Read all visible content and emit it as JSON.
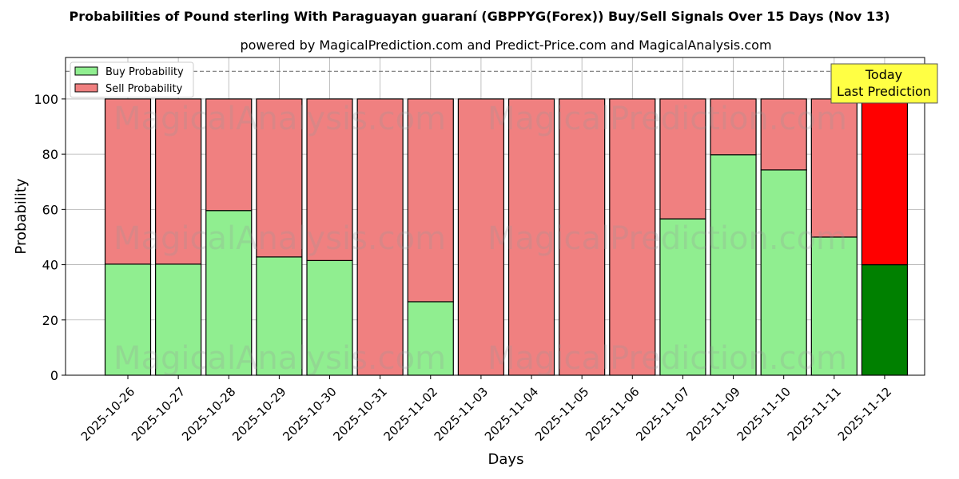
{
  "chart_data": {
    "type": "bar",
    "stacked": true,
    "title": "Probabilities of Pound sterling With Paraguayan guaraní (GBPPYG(Forex)) Buy/Sell Signals Over 15 Days (Nov 13)",
    "subtitle": "powered by MagicalPrediction.com and Predict-Price.com and MagicalAnalysis.com",
    "xlabel": "Days",
    "ylabel": "Probability",
    "ylim": [
      0,
      115
    ],
    "yticks": [
      0,
      20,
      40,
      60,
      80,
      100
    ],
    "grid": true,
    "legend_position": "top-left",
    "reference_line": 110,
    "categories": [
      "2025-10-26",
      "2025-10-27",
      "2025-10-28",
      "2025-10-29",
      "2025-10-30",
      "2025-10-31",
      "2025-11-02",
      "2025-11-03",
      "2025-11-04",
      "2025-11-05",
      "2025-11-06",
      "2025-11-07",
      "2025-11-09",
      "2025-11-10",
      "2025-11-11",
      "2025-11-12"
    ],
    "series": [
      {
        "name": "Buy Probability",
        "color": "#90ee90",
        "today_color": "#008000",
        "values": [
          40.2,
          40.2,
          59.6,
          42.8,
          41.5,
          0,
          26.6,
          0,
          0,
          0,
          0,
          56.6,
          79.8,
          74.3,
          50,
          40
        ]
      },
      {
        "name": "Sell Probability",
        "color": "#f08080",
        "today_color": "#ff0000",
        "values": [
          59.8,
          59.8,
          40.4,
          57.2,
          58.5,
          100,
          73.4,
          100,
          100,
          100,
          100,
          43.4,
          20.2,
          25.7,
          50,
          60
        ]
      }
    ],
    "annotation": {
      "line1": "Today",
      "line2": "Last Prediction",
      "color": "#ffff44"
    },
    "watermarks": [
      "MagicalAnalysis.com",
      "MagicalPrediction.com"
    ]
  }
}
